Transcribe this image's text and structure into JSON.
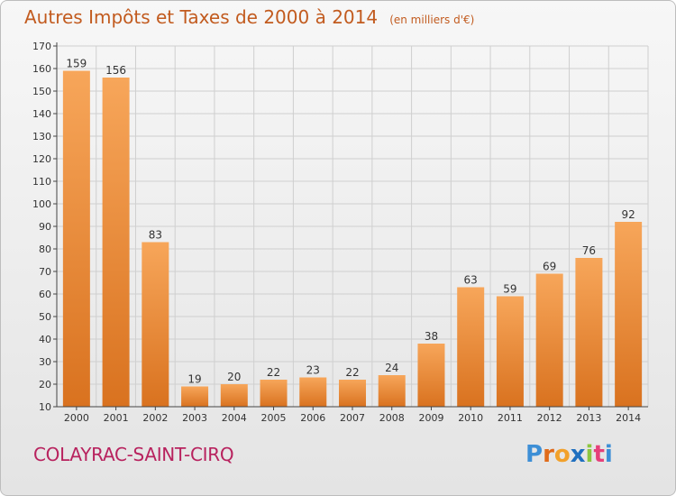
{
  "chart_data": {
    "type": "bar",
    "title": "Autres Impôts et Taxes de 2000 à 2014",
    "subtitle": "(en milliers d'€)",
    "categories": [
      "2000",
      "2001",
      "2002",
      "2003",
      "2004",
      "2005",
      "2006",
      "2007",
      "2008",
      "2009",
      "2010",
      "2011",
      "2012",
      "2013",
      "2014"
    ],
    "values": [
      159,
      156,
      83,
      19,
      20,
      22,
      23,
      22,
      24,
      38,
      63,
      59,
      69,
      76,
      92
    ],
    "ylim": [
      10,
      170
    ],
    "yticks": [
      10,
      20,
      30,
      40,
      50,
      60,
      70,
      80,
      90,
      100,
      110,
      120,
      130,
      140,
      150,
      160,
      170
    ],
    "grid": true,
    "bar_color": "#f0923a"
  },
  "footer": {
    "location": "COLAYRAC-SAINT-CIRQ"
  },
  "brand": {
    "text": "Proxiti"
  },
  "colors": {
    "title": "#c25b1f",
    "location": "#b8225e",
    "axis_text": "#333333",
    "grid": "#cfcfcf"
  }
}
